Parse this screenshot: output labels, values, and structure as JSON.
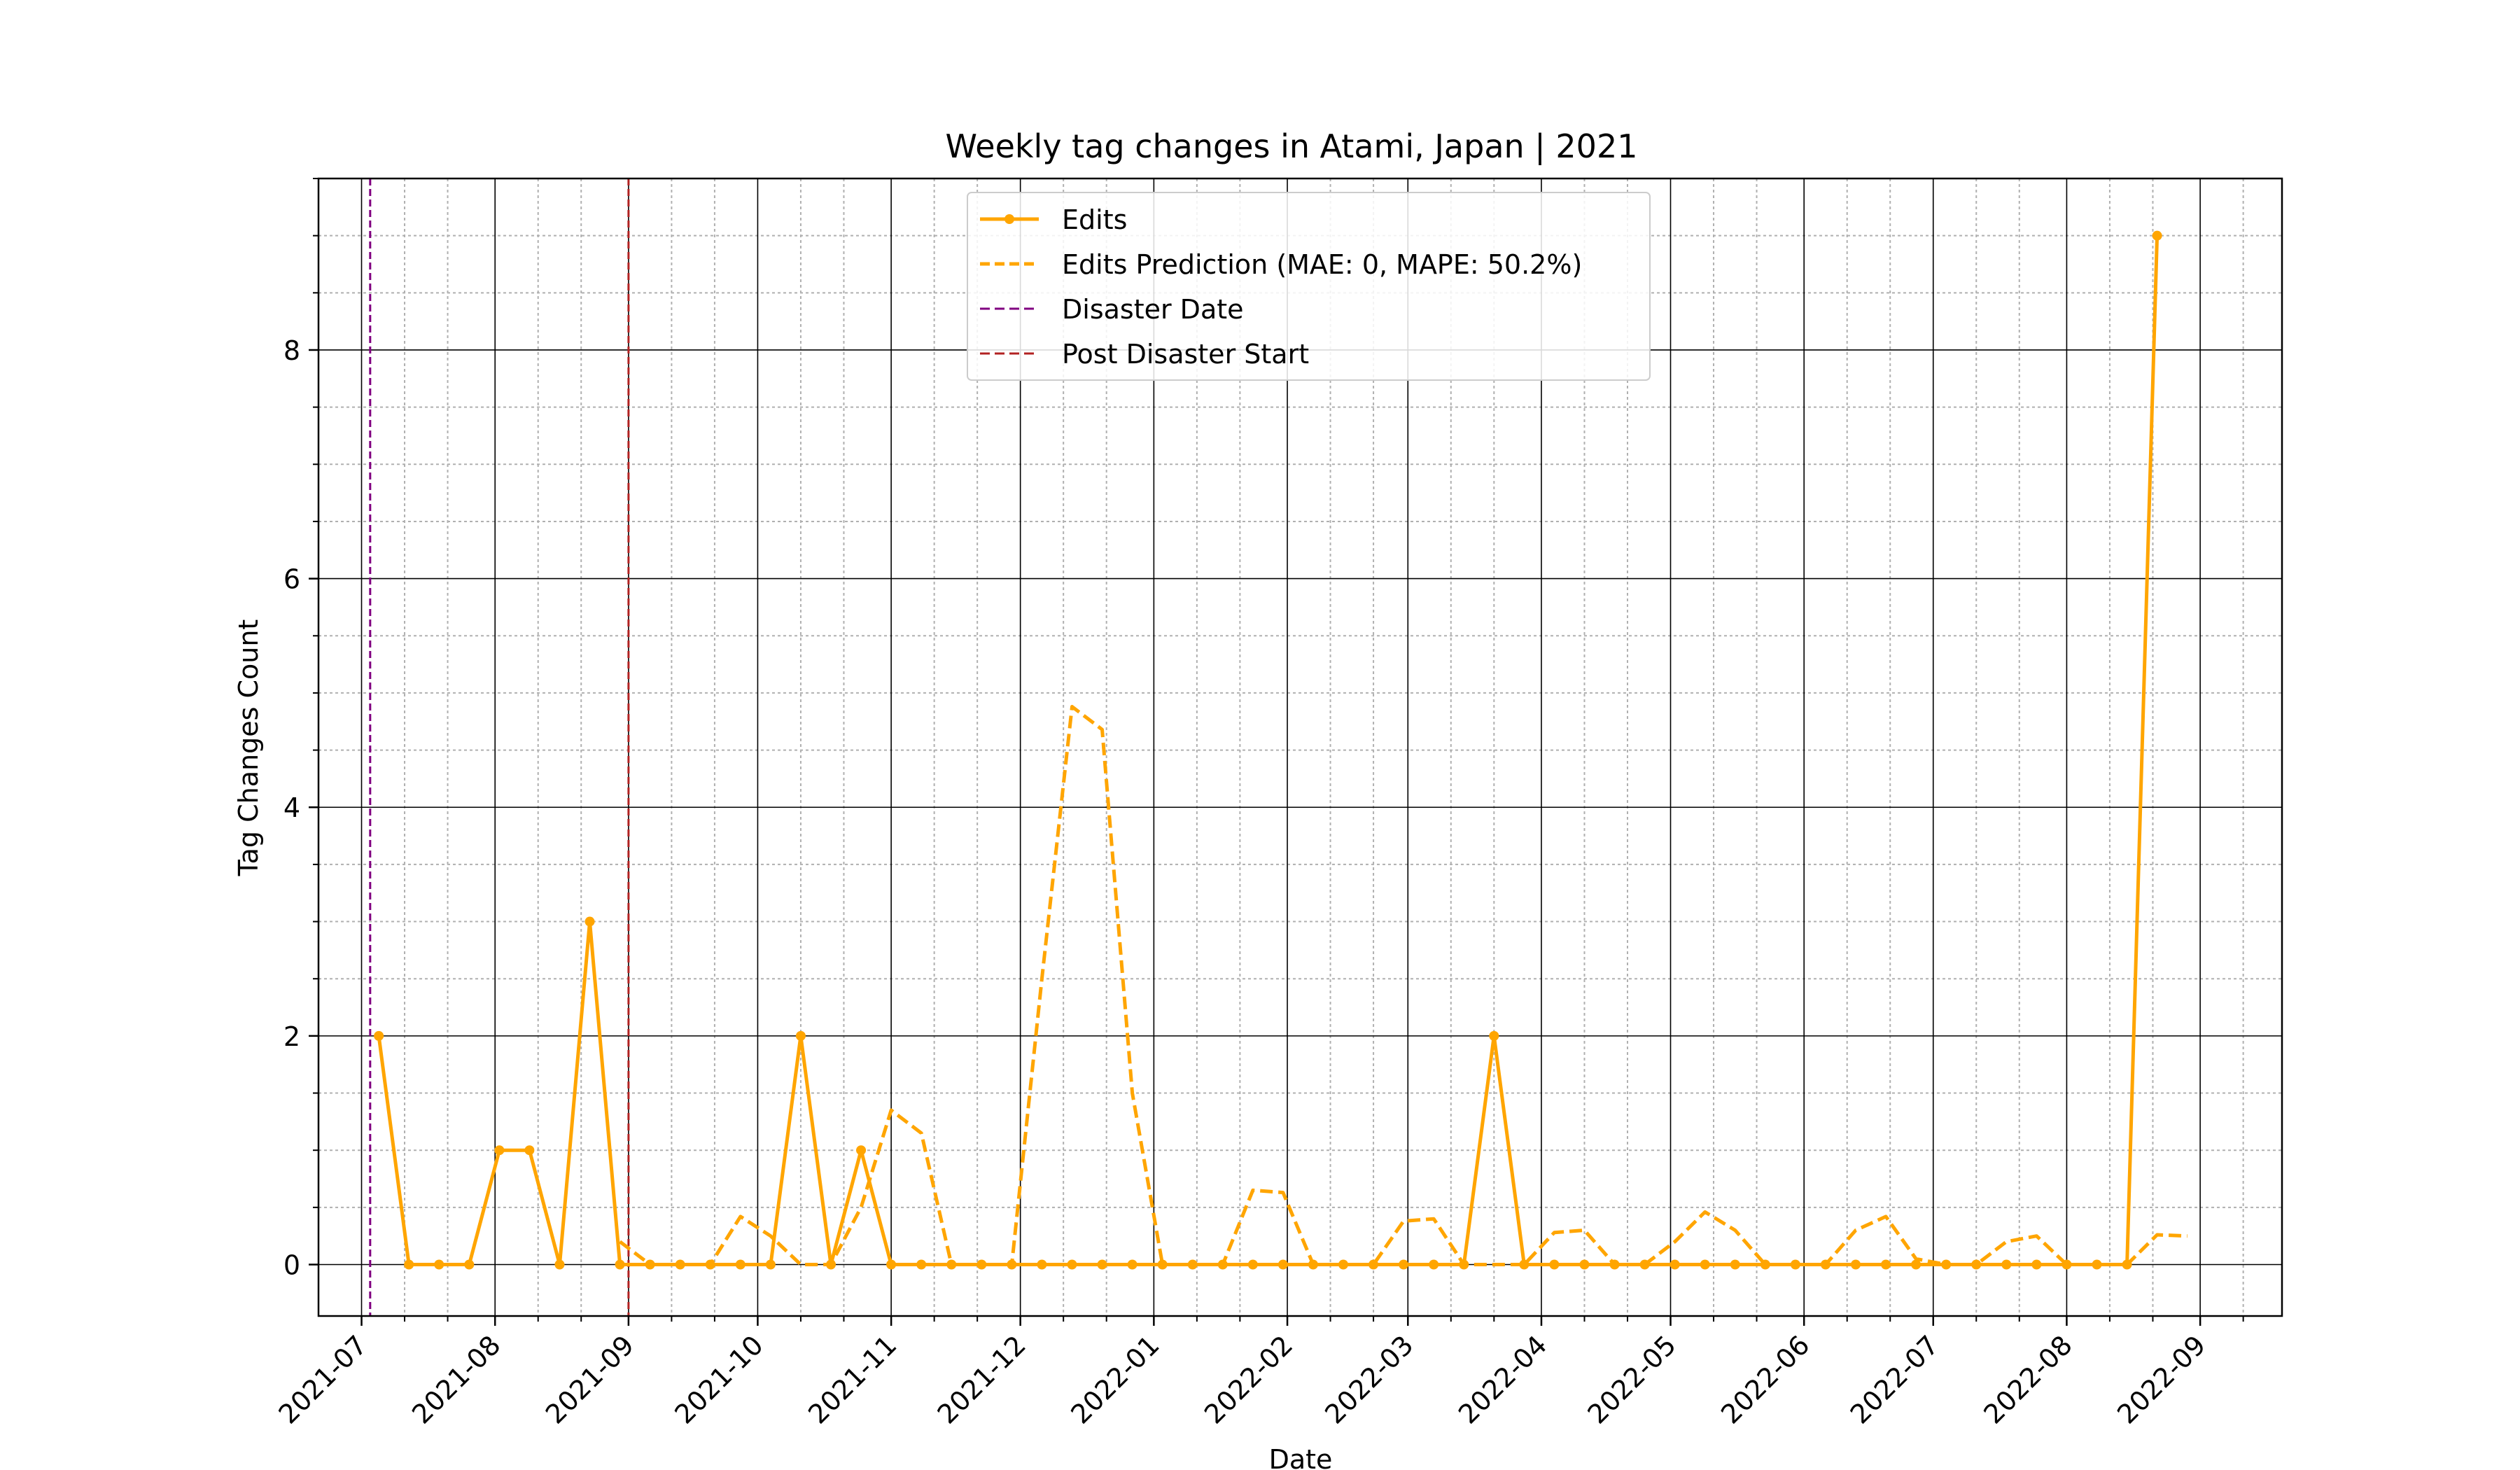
{
  "chart_data": {
    "type": "line",
    "title": "Weekly tag changes in Atami, Japan | 2021",
    "xlabel": "Date",
    "ylabel": "Tag Changes Count",
    "x_axis_type": "date",
    "xlim": [
      "2021-06-21",
      "2022-09-20"
    ],
    "ylim": [
      -0.45,
      9.5
    ],
    "y_ticks": [
      0,
      2,
      4,
      6,
      8
    ],
    "x_ticks": [
      {
        "date": "2021-07-01",
        "label": "2021-07"
      },
      {
        "date": "2021-08-01",
        "label": "2021-08"
      },
      {
        "date": "2021-09-01",
        "label": "2021-09"
      },
      {
        "date": "2021-10-01",
        "label": "2021-10"
      },
      {
        "date": "2021-11-01",
        "label": "2021-11"
      },
      {
        "date": "2021-12-01",
        "label": "2021-12"
      },
      {
        "date": "2022-01-01",
        "label": "2022-01"
      },
      {
        "date": "2022-02-01",
        "label": "2022-02"
      },
      {
        "date": "2022-03-01",
        "label": "2022-03"
      },
      {
        "date": "2022-04-01",
        "label": "2022-04"
      },
      {
        "date": "2022-05-01",
        "label": "2022-05"
      },
      {
        "date": "2022-06-01",
        "label": "2022-06"
      },
      {
        "date": "2022-07-01",
        "label": "2022-07"
      },
      {
        "date": "2022-08-01",
        "label": "2022-08"
      },
      {
        "date": "2022-09-01",
        "label": "2022-09"
      }
    ],
    "grid": true,
    "minor_grid": true,
    "legend_position": "top-center",
    "series": [
      {
        "name": "Edits",
        "color": "#FFA500",
        "style": "solid",
        "markers": true,
        "points": [
          [
            "2021-07-05",
            2
          ],
          [
            "2021-07-12",
            0
          ],
          [
            "2021-07-19",
            0
          ],
          [
            "2021-07-26",
            0
          ],
          [
            "2021-08-02",
            1
          ],
          [
            "2021-08-09",
            1
          ],
          [
            "2021-08-16",
            0
          ],
          [
            "2021-08-23",
            3
          ],
          [
            "2021-08-30",
            0
          ],
          [
            "2021-09-06",
            0
          ],
          [
            "2021-09-13",
            0
          ],
          [
            "2021-09-20",
            0
          ],
          [
            "2021-09-27",
            0
          ],
          [
            "2021-10-04",
            0
          ],
          [
            "2021-10-11",
            2
          ],
          [
            "2021-10-18",
            0
          ],
          [
            "2021-10-25",
            1
          ],
          [
            "2021-11-01",
            0
          ],
          [
            "2021-11-08",
            0
          ],
          [
            "2021-11-15",
            0
          ],
          [
            "2021-11-22",
            0
          ],
          [
            "2021-11-29",
            0
          ],
          [
            "2021-12-06",
            0
          ],
          [
            "2021-12-13",
            0
          ],
          [
            "2021-12-20",
            0
          ],
          [
            "2021-12-27",
            0
          ],
          [
            "2022-01-03",
            0
          ],
          [
            "2022-01-10",
            0
          ],
          [
            "2022-01-17",
            0
          ],
          [
            "2022-01-24",
            0
          ],
          [
            "2022-01-31",
            0
          ],
          [
            "2022-02-07",
            0
          ],
          [
            "2022-02-14",
            0
          ],
          [
            "2022-02-21",
            0
          ],
          [
            "2022-02-28",
            0
          ],
          [
            "2022-03-07",
            0
          ],
          [
            "2022-03-14",
            0
          ],
          [
            "2022-03-21",
            2
          ],
          [
            "2022-03-28",
            0
          ],
          [
            "2022-04-04",
            0
          ],
          [
            "2022-04-11",
            0
          ],
          [
            "2022-04-18",
            0
          ],
          [
            "2022-04-25",
            0
          ],
          [
            "2022-05-02",
            0
          ],
          [
            "2022-05-09",
            0
          ],
          [
            "2022-05-16",
            0
          ],
          [
            "2022-05-23",
            0
          ],
          [
            "2022-05-30",
            0
          ],
          [
            "2022-06-06",
            0
          ],
          [
            "2022-06-13",
            0
          ],
          [
            "2022-06-20",
            0
          ],
          [
            "2022-06-27",
            0
          ],
          [
            "2022-07-04",
            0
          ],
          [
            "2022-07-11",
            0
          ],
          [
            "2022-07-18",
            0
          ],
          [
            "2022-07-25",
            0
          ],
          [
            "2022-08-01",
            0
          ],
          [
            "2022-08-08",
            0
          ],
          [
            "2022-08-15",
            0
          ],
          [
            "2022-08-22",
            9
          ]
        ]
      },
      {
        "name": "Edits Prediction (MAE: 0, MAPE: 50.2%)",
        "color": "#FFA500",
        "style": "dashed",
        "markers": false,
        "points": [
          [
            "2021-08-30",
            0.2
          ],
          [
            "2021-09-06",
            0
          ],
          [
            "2021-09-13",
            0
          ],
          [
            "2021-09-20",
            0
          ],
          [
            "2021-09-27",
            0.42
          ],
          [
            "2021-10-04",
            0.25
          ],
          [
            "2021-10-11",
            0
          ],
          [
            "2021-10-18",
            0
          ],
          [
            "2021-10-25",
            0.5
          ],
          [
            "2021-11-01",
            1.35
          ],
          [
            "2021-11-08",
            1.15
          ],
          [
            "2021-11-15",
            0
          ],
          [
            "2021-11-22",
            0
          ],
          [
            "2021-11-29",
            0
          ],
          [
            "2021-12-06",
            2.5
          ],
          [
            "2021-12-13",
            4.88
          ],
          [
            "2021-12-20",
            4.68
          ],
          [
            "2021-12-27",
            1.5
          ],
          [
            "2022-01-03",
            0
          ],
          [
            "2022-01-10",
            0
          ],
          [
            "2022-01-17",
            0
          ],
          [
            "2022-01-24",
            0.65
          ],
          [
            "2022-01-31",
            0.63
          ],
          [
            "2022-02-07",
            0
          ],
          [
            "2022-02-14",
            0
          ],
          [
            "2022-02-21",
            0
          ],
          [
            "2022-02-28",
            0.38
          ],
          [
            "2022-03-07",
            0.4
          ],
          [
            "2022-03-14",
            0
          ],
          [
            "2022-03-21",
            0
          ],
          [
            "2022-03-28",
            0
          ],
          [
            "2022-04-04",
            0.28
          ],
          [
            "2022-04-11",
            0.3
          ],
          [
            "2022-04-18",
            0
          ],
          [
            "2022-04-25",
            0
          ],
          [
            "2022-05-02",
            0.2
          ],
          [
            "2022-05-09",
            0.46
          ],
          [
            "2022-05-16",
            0.3
          ],
          [
            "2022-05-23",
            0
          ],
          [
            "2022-05-30",
            0
          ],
          [
            "2022-06-06",
            0
          ],
          [
            "2022-06-13",
            0.3
          ],
          [
            "2022-06-20",
            0.42
          ],
          [
            "2022-06-27",
            0.05
          ],
          [
            "2022-07-04",
            0
          ],
          [
            "2022-07-11",
            0
          ],
          [
            "2022-07-18",
            0.2
          ],
          [
            "2022-07-25",
            0.25
          ],
          [
            "2022-08-01",
            0
          ],
          [
            "2022-08-08",
            0
          ],
          [
            "2022-08-15",
            0
          ],
          [
            "2022-08-22",
            0.26
          ],
          [
            "2022-08-29",
            0.25
          ]
        ]
      }
    ],
    "vlines": [
      {
        "name": "Disaster Date",
        "date": "2021-07-03",
        "color": "#800080",
        "style": "dashed"
      },
      {
        "name": "Post Disaster Start",
        "date": "2021-09-01",
        "color": "#B22222",
        "style": "dashed"
      }
    ]
  }
}
